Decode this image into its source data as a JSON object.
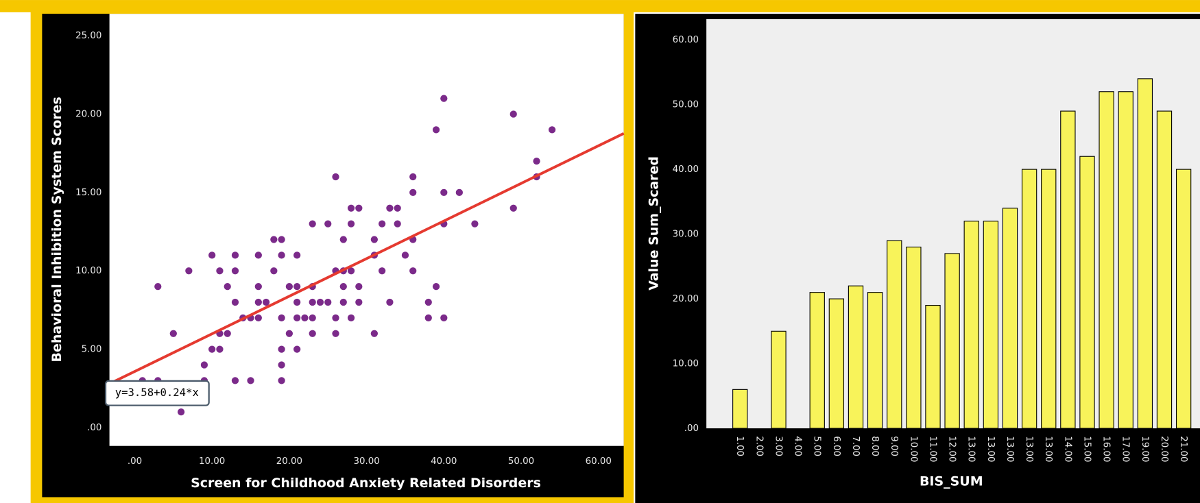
{
  "chart_data": [
    {
      "type": "scatter",
      "x_label": "Screen for Childhood Anxiety Related Disorders",
      "y_label": "Behavioral Inhibition System Scores",
      "color": "#7b2a8a",
      "x": [
        1,
        3,
        3,
        5,
        7,
        6,
        9,
        9,
        10,
        10,
        11,
        11,
        11,
        12,
        12,
        13,
        13,
        13,
        13,
        14,
        15,
        15,
        16,
        16,
        16,
        16,
        17,
        18,
        18,
        19,
        19,
        19,
        19,
        19,
        19,
        20,
        20,
        21,
        21,
        21,
        21,
        21,
        22,
        23,
        23,
        23,
        23,
        23,
        24,
        25,
        25,
        26,
        26,
        26,
        26,
        27,
        27,
        27,
        27,
        28,
        28,
        28,
        28,
        29,
        29,
        29,
        31,
        31,
        31,
        32,
        32,
        33,
        33,
        34,
        34,
        35,
        36,
        36,
        36,
        36,
        38,
        38,
        39,
        39,
        40,
        40,
        40,
        40,
        42,
        44,
        49,
        49,
        52,
        52,
        54
      ],
      "values": [
        3,
        3,
        9,
        6,
        10,
        1,
        4,
        3,
        5,
        11,
        5,
        6,
        10,
        6,
        9,
        3,
        8,
        10,
        11,
        7,
        3,
        7,
        7,
        8,
        9,
        11,
        8,
        10,
        12,
        3,
        4,
        5,
        7,
        11,
        12,
        6,
        9,
        5,
        7,
        8,
        9,
        11,
        7,
        6,
        7,
        8,
        9,
        13,
        8,
        8,
        13,
        6,
        7,
        10,
        16,
        8,
        9,
        10,
        12,
        7,
        10,
        13,
        14,
        8,
        9,
        14,
        6,
        11,
        12,
        10,
        13,
        8,
        14,
        13,
        14,
        11,
        10,
        12,
        15,
        16,
        7,
        8,
        9,
        19,
        7,
        13,
        15,
        21,
        15,
        13,
        14,
        20,
        16,
        17,
        19
      ],
      "xlim": [
        -3.27,
        63.27
      ],
      "ylim": [
        -1.17,
        26.4
      ],
      "xticks": [
        {
          "value": 0,
          "label": ".00"
        },
        {
          "value": 10,
          "label": "10.00"
        },
        {
          "value": 20,
          "label": "20.00"
        },
        {
          "value": 30,
          "label": "30.00"
        },
        {
          "value": 40,
          "label": "40.00"
        },
        {
          "value": 50,
          "label": "50.00"
        },
        {
          "value": 60,
          "label": "60.00"
        }
      ],
      "yticks": [
        {
          "value": 0,
          "label": ".00"
        },
        {
          "value": 5,
          "label": "5.00"
        },
        {
          "value": 10,
          "label": "10.00"
        },
        {
          "value": 15,
          "label": "15.00"
        },
        {
          "value": 20,
          "label": "20.00"
        },
        {
          "value": 25,
          "label": "25.00"
        }
      ],
      "fit": {
        "label": "y=3.58+0.24*x",
        "intercept": 3.58,
        "slope": 0.24,
        "color": "#e53a30"
      }
    },
    {
      "type": "bar",
      "x_label": "BIS_SUM",
      "y_label": "Value Sum_Scared",
      "color": "#f8f35a",
      "categories": [
        "1.00",
        "2.00",
        "3.00",
        "4.00",
        "5.00",
        "6.00",
        "7.00",
        "8.00",
        "9.00",
        "10.00",
        "11.00",
        "12.00",
        "13.00",
        "13.00",
        "13.00",
        "13.00",
        "13.00",
        "14.00",
        "15.00",
        "16.00",
        "17.00",
        "19.00",
        "20.00",
        "21.00"
      ],
      "values": [
        6,
        null,
        15,
        null,
        21,
        20,
        22,
        21,
        29,
        28,
        19,
        27,
        32,
        32,
        34,
        40,
        40,
        49,
        42,
        52,
        52,
        54,
        49,
        40
      ],
      "ylim": [
        0,
        63.2
      ],
      "yticks": [
        {
          "value": 0,
          "label": ".00"
        },
        {
          "value": 10,
          "label": "10.00"
        },
        {
          "value": 20,
          "label": "20.00"
        },
        {
          "value": 30,
          "label": "30.00"
        },
        {
          "value": 40,
          "label": "40.00"
        },
        {
          "value": 50,
          "label": "50.00"
        },
        {
          "value": 60,
          "label": "60.00"
        }
      ]
    }
  ]
}
